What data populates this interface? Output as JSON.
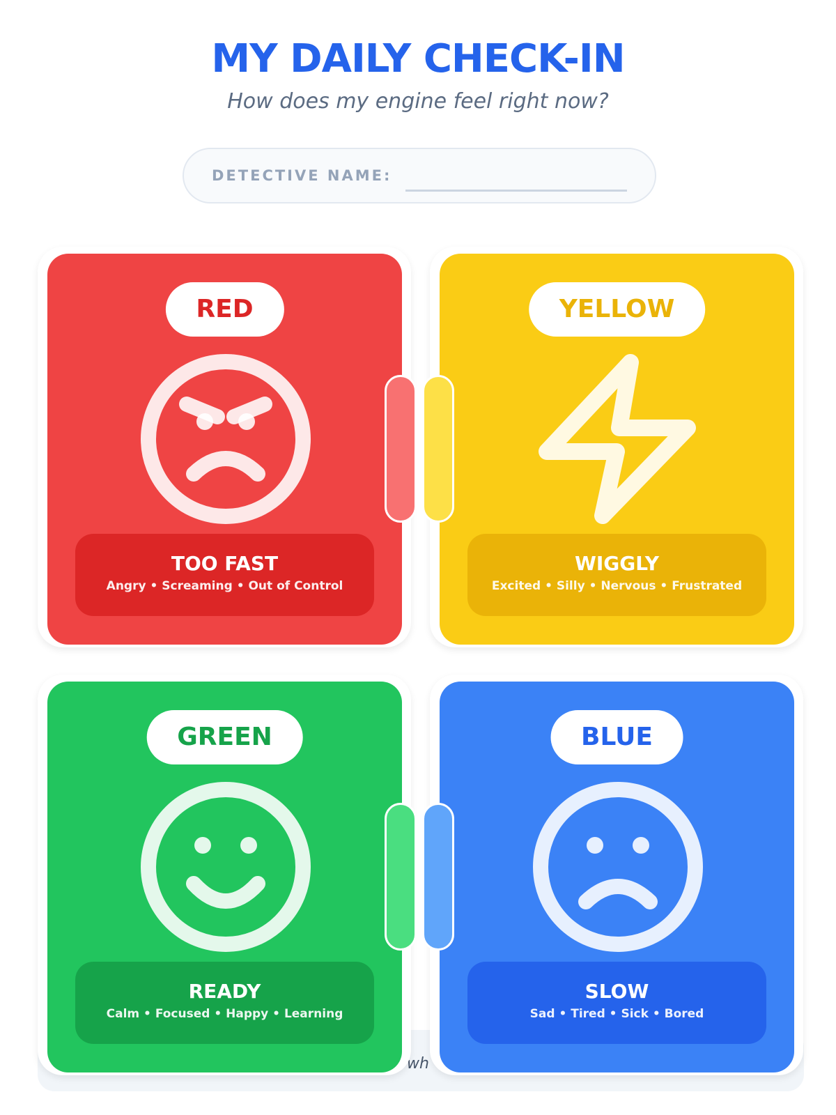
{
  "header": {
    "title": "MY DAILY CHECK-IN",
    "subtitle": "How does my engine feel right now?"
  },
  "name_field": {
    "label": "DETECTIVE NAME:",
    "value": ""
  },
  "background_text": "wh",
  "zones": [
    {
      "label": "RED",
      "icon": "angry-face-icon",
      "title": "TOO FAST",
      "feelings": "Angry • Screaming • Out of Control",
      "color": "#ef4444",
      "dark": "#dc2626",
      "text_color": "#dc2626"
    },
    {
      "label": "YELLOW",
      "icon": "lightning-bolt-icon",
      "title": "WIGGLY",
      "feelings": "Excited • Silly • Nervous • Frustrated",
      "color": "#facc15",
      "dark": "#eab308",
      "text_color": "#eab308"
    },
    {
      "label": "GREEN",
      "icon": "happy-face-icon",
      "title": "READY",
      "feelings": "Calm • Focused • Happy • Learning",
      "color": "#22c55e",
      "dark": "#16a34a",
      "text_color": "#16a34a"
    },
    {
      "label": "BLUE",
      "icon": "sad-face-icon",
      "title": "SLOW",
      "feelings": "Sad • Tired • Sick • Bored",
      "color": "#3b82f6",
      "dark": "#2563eb",
      "text_color": "#2563eb"
    }
  ]
}
